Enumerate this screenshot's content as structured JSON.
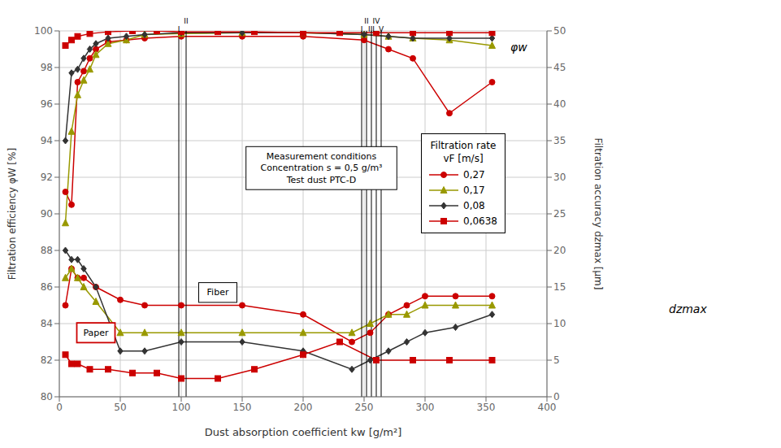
{
  "chart_data": {
    "type": "line",
    "xlabel": "Dust absorption coefficient kw [g/m²]",
    "ylabel": "Filtration efficiency φW [%]",
    "y2label": "Filtration accuracy dzmax [μm]",
    "xlim": [
      0,
      400
    ],
    "ylim": [
      80,
      100
    ],
    "y2lim": [
      0,
      50
    ],
    "xticks": [
      0,
      50,
      100,
      150,
      200,
      250,
      300,
      350,
      400
    ],
    "yticks": [
      80,
      82,
      84,
      86,
      88,
      90,
      92,
      94,
      96,
      98,
      100
    ],
    "y2ticks": [
      0,
      5,
      10,
      15,
      20,
      25,
      30,
      35,
      40,
      45,
      50
    ],
    "grid": true,
    "legend": "upper right",
    "legend_title": "Filtration rate\nvF [m/s]",
    "series": [
      {
        "name": "0,27",
        "color": "#cc0000",
        "marker": "circle",
        "x": [
          5,
          10,
          15,
          20,
          25,
          30,
          40,
          55,
          70,
          100,
          150,
          200,
          250,
          270,
          290,
          320,
          355
        ],
        "values": [
          91.2,
          90.5,
          97.2,
          97.8,
          98.5,
          99.0,
          99.4,
          99.5,
          99.6,
          99.7,
          99.7,
          99.7,
          99.5,
          99.0,
          98.5,
          95.5,
          97.2
        ]
      },
      {
        "name": "0,17",
        "color": "#999900",
        "marker": "triangle",
        "x": [
          5,
          10,
          15,
          20,
          25,
          30,
          40,
          55,
          70,
          100,
          150,
          200,
          250,
          270,
          290,
          320,
          355
        ],
        "values": [
          89.5,
          94.5,
          96.5,
          97.3,
          97.9,
          98.7,
          99.3,
          99.5,
          99.8,
          99.85,
          99.9,
          99.9,
          99.8,
          99.7,
          99.6,
          99.5,
          99.2
        ]
      },
      {
        "name": "0,08",
        "color": "#333333",
        "marker": "diamond",
        "x": [
          5,
          10,
          15,
          20,
          25,
          30,
          40,
          55,
          70,
          100,
          150,
          200,
          250,
          270,
          290,
          320,
          355
        ],
        "values": [
          94.0,
          97.7,
          97.9,
          98.5,
          99.0,
          99.3,
          99.6,
          99.7,
          99.8,
          99.9,
          99.9,
          99.9,
          99.8,
          99.7,
          99.6,
          99.6,
          99.6
        ]
      },
      {
        "name": "0,0638",
        "color": "#cc0000",
        "marker": "square",
        "x": [
          5,
          10,
          15,
          25,
          40,
          60,
          80,
          100,
          130,
          160,
          200,
          230,
          260,
          290,
          320,
          355
        ],
        "values": [
          99.2,
          99.5,
          99.7,
          99.85,
          99.95,
          100.0,
          100.0,
          99.95,
          99.95,
          99.95,
          99.9,
          99.9,
          99.9,
          99.9,
          99.9,
          99.9
        ]
      },
      {
        "name": "0,27",
        "color": "#cc0000",
        "marker": "circle",
        "x": [
          5,
          10,
          15,
          20,
          30,
          50,
          70,
          100,
          150,
          200,
          240,
          255,
          270,
          285,
          300,
          325,
          355
        ],
        "values": [
          85.0,
          87.0,
          86.5,
          86.5,
          86.0,
          85.3,
          85.0,
          85.0,
          85.0,
          84.5,
          83.0,
          83.5,
          84.5,
          85.0,
          85.5,
          85.5,
          85.5
        ]
      },
      {
        "name": "0,17",
        "color": "#999900",
        "marker": "triangle",
        "x": [
          5,
          10,
          15,
          20,
          30,
          50,
          70,
          100,
          150,
          200,
          240,
          255,
          270,
          285,
          300,
          325,
          355
        ],
        "values": [
          86.5,
          87.0,
          86.5,
          86.0,
          85.2,
          83.5,
          83.5,
          83.5,
          83.5,
          83.5,
          83.5,
          84.0,
          84.5,
          84.5,
          85.0,
          85.0,
          85.0
        ]
      },
      {
        "name": "0,08",
        "color": "#333333",
        "marker": "diamond",
        "x": [
          5,
          10,
          15,
          20,
          30,
          50,
          70,
          100,
          150,
          200,
          240,
          255,
          270,
          285,
          300,
          325,
          355
        ],
        "values": [
          88.0,
          87.5,
          87.5,
          87.0,
          86.0,
          82.5,
          82.5,
          83.0,
          83.0,
          82.5,
          81.5,
          82.0,
          82.5,
          83.0,
          83.5,
          83.8,
          84.5
        ]
      },
      {
        "name": "0,0638",
        "color": "#cc0000",
        "marker": "square",
        "x": [
          5,
          10,
          15,
          25,
          40,
          60,
          80,
          100,
          130,
          160,
          200,
          230,
          260,
          290,
          320,
          355
        ],
        "values": [
          82.3,
          81.8,
          81.8,
          81.5,
          81.5,
          81.3,
          81.3,
          81.0,
          81.0,
          81.5,
          82.3,
          83.0,
          82.0,
          82.0,
          82.0,
          82.0
        ]
      }
    ],
    "vlines": [
      98,
      104,
      248,
      252,
      256,
      260,
      264
    ],
    "annotations": [
      {
        "text": "I",
        "x": 98,
        "y": 99.85
      },
      {
        "text": "II",
        "x": 104,
        "y": 99.85
      },
      {
        "text": "I",
        "x": 248,
        "y": 99.85
      },
      {
        "text": "II",
        "x": 252,
        "y": 99.85
      },
      {
        "text": "III",
        "x": 256,
        "y": 99.85
      },
      {
        "text": "IV",
        "x": 260,
        "y": 99.85
      },
      {
        "text": "V",
        "x": 264,
        "y": 99.85
      },
      {
        "text": "φw",
        "x": 370,
        "y": 99.1
      },
      {
        "text": "dzmax",
        "x": 500,
        "y": 84.8
      },
      {
        "text": "Fiber",
        "x": 130,
        "y": 85.7,
        "color": "#000000"
      },
      {
        "text": "Paper",
        "x": 30,
        "y": 83.5,
        "color": "#cc0000"
      },
      {
        "text": "Measurement conditions\nConcentration s = 0,5 g/m³\nTest dust PTC-D",
        "x": 215,
        "y": 92.5,
        "color": "#000000"
      }
    ]
  }
}
